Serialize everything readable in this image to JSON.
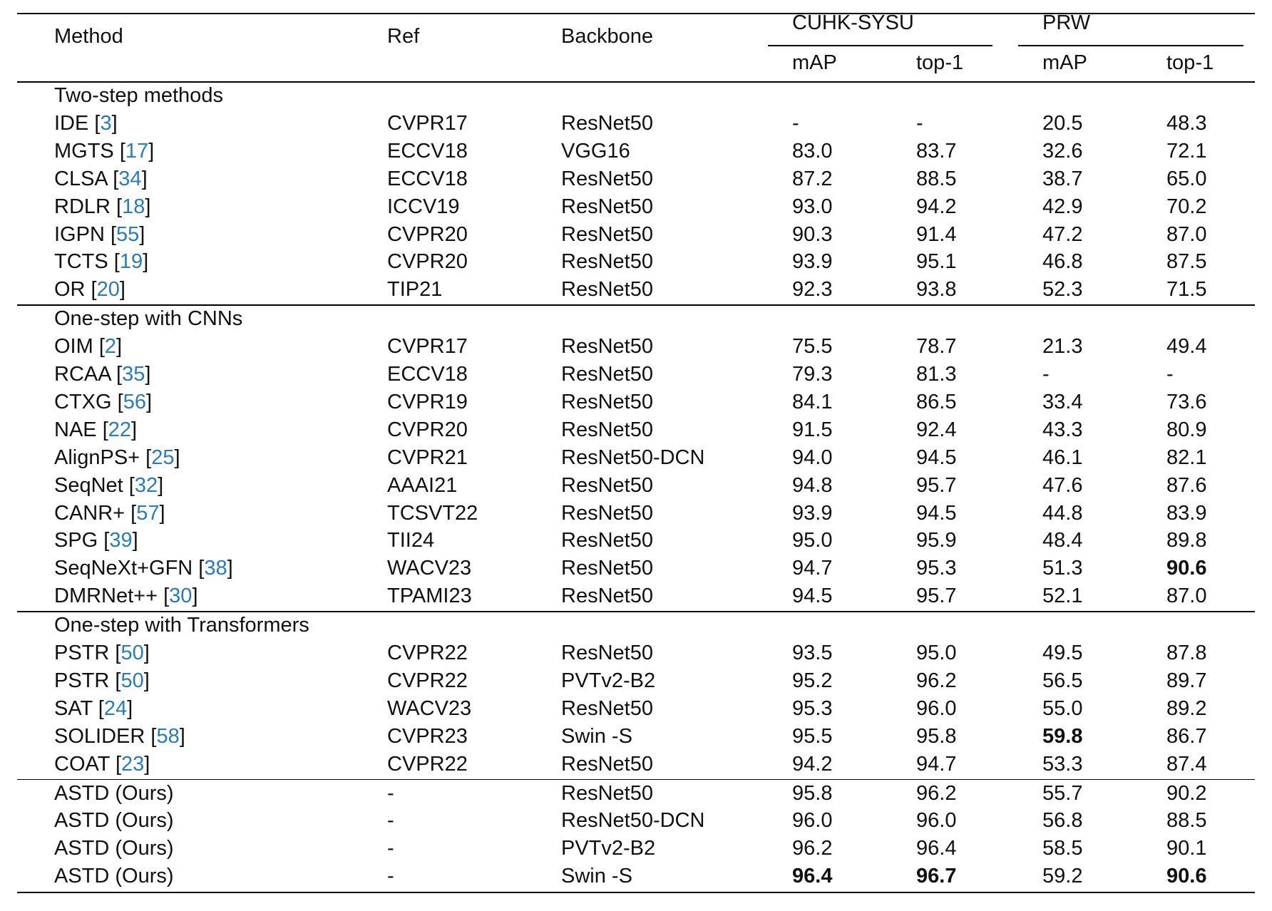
{
  "header": {
    "method": "Method",
    "ref": "Ref",
    "backbone": "Backbone",
    "group_cuhk": "CUHK-SYSU",
    "group_prw": "PRW",
    "cuhk_map": "mAP",
    "cuhk_top1": "top-1",
    "prw_map": "mAP",
    "prw_top1": "top-1"
  },
  "sections": [
    {
      "title": "Two-step methods",
      "rows": [
        {
          "method": "IDE",
          "cite": "3",
          "ref": "CVPR17",
          "backbone": "ResNet50",
          "cuhk_map": "-",
          "cuhk_top1": "-",
          "prw_map": "20.5",
          "prw_top1": "48.3"
        },
        {
          "method": "MGTS",
          "cite": "17",
          "ref": "ECCV18",
          "backbone": "VGG16",
          "cuhk_map": "83.0",
          "cuhk_top1": "83.7",
          "prw_map": "32.6",
          "prw_top1": "72.1"
        },
        {
          "method": "CLSA",
          "cite": "34",
          "ref": "ECCV18",
          "backbone": "ResNet50",
          "cuhk_map": "87.2",
          "cuhk_top1": "88.5",
          "prw_map": "38.7",
          "prw_top1": "65.0"
        },
        {
          "method": "RDLR",
          "cite": "18",
          "ref": "ICCV19",
          "backbone": "ResNet50",
          "cuhk_map": "93.0",
          "cuhk_top1": "94.2",
          "prw_map": "42.9",
          "prw_top1": "70.2"
        },
        {
          "method": "IGPN",
          "cite": "55",
          "ref": "CVPR20",
          "backbone": "ResNet50",
          "cuhk_map": "90.3",
          "cuhk_top1": "91.4",
          "prw_map": "47.2",
          "prw_top1": "87.0"
        },
        {
          "method": "TCTS",
          "cite": "19",
          "ref": "CVPR20",
          "backbone": "ResNet50",
          "cuhk_map": "93.9",
          "cuhk_top1": "95.1",
          "prw_map": "46.8",
          "prw_top1": "87.5"
        },
        {
          "method": "OR",
          "cite": "20",
          "ref": "TIP21",
          "backbone": "ResNet50",
          "cuhk_map": "92.3",
          "cuhk_top1": "93.8",
          "prw_map": "52.3",
          "prw_top1": "71.5"
        }
      ]
    },
    {
      "title": "One-step with CNNs",
      "rows": [
        {
          "method": "OIM",
          "cite": "2",
          "ref": "CVPR17",
          "backbone": "ResNet50",
          "cuhk_map": "75.5",
          "cuhk_top1": "78.7",
          "prw_map": "21.3",
          "prw_top1": "49.4"
        },
        {
          "method": "RCAA",
          "cite": "35",
          "ref": "ECCV18",
          "backbone": "ResNet50",
          "cuhk_map": "79.3",
          "cuhk_top1": "81.3",
          "prw_map": "-",
          "prw_top1": "-"
        },
        {
          "method": "CTXG",
          "cite": "56",
          "ref": "CVPR19",
          "backbone": "ResNet50",
          "cuhk_map": "84.1",
          "cuhk_top1": "86.5",
          "prw_map": "33.4",
          "prw_top1": "73.6"
        },
        {
          "method": "NAE",
          "cite": "22",
          "ref": "CVPR20",
          "backbone": "ResNet50",
          "cuhk_map": "91.5",
          "cuhk_top1": "92.4",
          "prw_map": "43.3",
          "prw_top1": "80.9"
        },
        {
          "method": "AlignPS+",
          "cite": "25",
          "ref": "CVPR21",
          "backbone": "ResNet50-DCN",
          "cuhk_map": "94.0",
          "cuhk_top1": "94.5",
          "prw_map": "46.1",
          "prw_top1": "82.1"
        },
        {
          "method": "SeqNet",
          "cite": "32",
          "ref": "AAAI21",
          "backbone": "ResNet50",
          "cuhk_map": "94.8",
          "cuhk_top1": "95.7",
          "prw_map": "47.6",
          "prw_top1": "87.6"
        },
        {
          "method": "CANR+",
          "cite": "57",
          "ref": "TCSVT22",
          "backbone": "ResNet50",
          "cuhk_map": "93.9",
          "cuhk_top1": "94.5",
          "prw_map": "44.8",
          "prw_top1": "83.9"
        },
        {
          "method": "SPG",
          "cite": "39",
          "ref": "TII24",
          "backbone": "ResNet50",
          "cuhk_map": "95.0",
          "cuhk_top1": "95.9",
          "prw_map": "48.4",
          "prw_top1": "89.8"
        },
        {
          "method": "SeqNeXt+GFN",
          "cite": "38",
          "ref": "WACV23",
          "backbone": "ResNet50",
          "cuhk_map": "94.7",
          "cuhk_top1": "95.3",
          "prw_map": "51.3",
          "prw_top1": "90.6",
          "bold": [
            "prw_top1"
          ]
        },
        {
          "method": "DMRNet++",
          "cite": "30",
          "ref": "TPAMI23",
          "backbone": "ResNet50",
          "cuhk_map": "94.5",
          "cuhk_top1": "95.7",
          "prw_map": "52.1",
          "prw_top1": "87.0"
        }
      ]
    },
    {
      "title": "One-step with Transformers",
      "rows": [
        {
          "method": "PSTR",
          "cite": "50",
          "ref": "CVPR22",
          "backbone": "ResNet50",
          "cuhk_map": "93.5",
          "cuhk_top1": "95.0",
          "prw_map": "49.5",
          "prw_top1": "87.8"
        },
        {
          "method": "PSTR",
          "cite": "50",
          "ref": "CVPR22",
          "backbone": "PVTv2-B2",
          "cuhk_map": "95.2",
          "cuhk_top1": "96.2",
          "prw_map": "56.5",
          "prw_top1": "89.7"
        },
        {
          "method": "SAT",
          "cite": "24",
          "ref": "WACV23",
          "backbone": "ResNet50",
          "cuhk_map": "95.3",
          "cuhk_top1": "96.0",
          "prw_map": "55.0",
          "prw_top1": "89.2"
        },
        {
          "method": "SOLIDER",
          "cite": "58",
          "ref": "CVPR23",
          "backbone": "Swin -S",
          "cuhk_map": "95.5",
          "cuhk_top1": "95.8",
          "prw_map": "59.8",
          "prw_top1": "86.7",
          "bold": [
            "prw_map"
          ]
        },
        {
          "method": "COAT",
          "cite": "23",
          "ref": "CVPR22",
          "backbone": "ResNet50",
          "cuhk_map": "94.2",
          "cuhk_top1": "94.7",
          "prw_map": "53.3",
          "prw_top1": "87.4"
        }
      ]
    },
    {
      "title": "",
      "rows": [
        {
          "method": "ASTD (Ours)",
          "cite": "",
          "ref": "-",
          "backbone": "ResNet50",
          "cuhk_map": "95.8",
          "cuhk_top1": "96.2",
          "prw_map": "55.7",
          "prw_top1": "90.2"
        },
        {
          "method": "ASTD (Ours)",
          "cite": "",
          "ref": "-",
          "backbone": "ResNet50-DCN",
          "cuhk_map": "96.0",
          "cuhk_top1": "96.0",
          "prw_map": "56.8",
          "prw_top1": "88.5"
        },
        {
          "method": "ASTD (Ours)",
          "cite": "",
          "ref": "-",
          "backbone": "PVTv2-B2",
          "cuhk_map": "96.2",
          "cuhk_top1": "96.4",
          "prw_map": "58.5",
          "prw_top1": "90.1"
        },
        {
          "method": "ASTD (Ours)",
          "cite": "",
          "ref": "-",
          "backbone": "Swin -S",
          "cuhk_map": "96.4",
          "cuhk_top1": "96.7",
          "prw_map": "59.2",
          "prw_top1": "90.6",
          "bold": [
            "cuhk_map",
            "cuhk_top1",
            "prw_top1"
          ]
        }
      ]
    }
  ]
}
